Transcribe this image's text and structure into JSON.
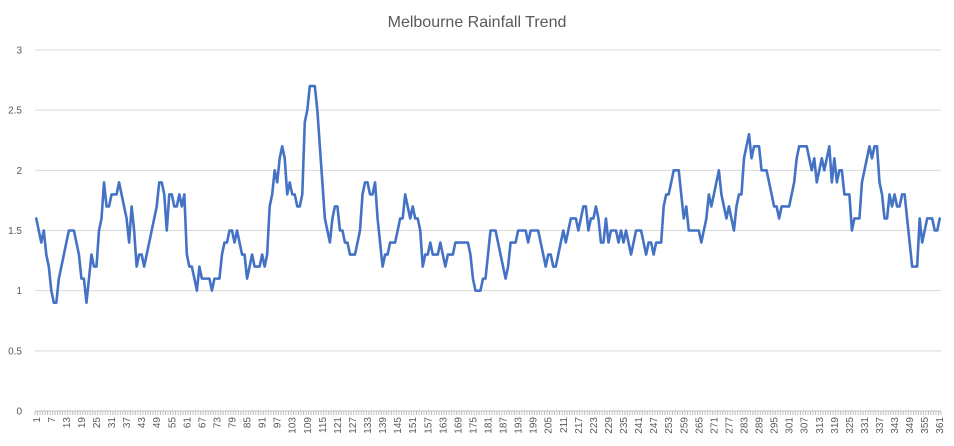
{
  "chart_data": {
    "type": "line",
    "title": "Melbourne Rainfall Trend",
    "xlabel": "",
    "ylabel": "",
    "ylim": [
      0,
      3
    ],
    "yticks": [
      "0",
      "0.5",
      "1",
      "1.5",
      "2",
      "2.5",
      "3"
    ],
    "grid": true,
    "legend": "none",
    "line_color": "#4472c4",
    "x_tick_step": 6,
    "series": [
      {
        "values": [
          1.6,
          1.5,
          1.4,
          1.5,
          1.3,
          1.2,
          1.0,
          0.9,
          0.9,
          1.1,
          1.2,
          1.3,
          1.4,
          1.5,
          1.5,
          1.5,
          1.4,
          1.3,
          1.1,
          1.1,
          0.9,
          1.1,
          1.3,
          1.2,
          1.2,
          1.5,
          1.6,
          1.9,
          1.7,
          1.7,
          1.8,
          1.8,
          1.8,
          1.9,
          1.8,
          1.7,
          1.6,
          1.4,
          1.7,
          1.5,
          1.2,
          1.3,
          1.3,
          1.2,
          1.3,
          1.4,
          1.5,
          1.6,
          1.7,
          1.9,
          1.9,
          1.8,
          1.5,
          1.8,
          1.8,
          1.7,
          1.7,
          1.8,
          1.7,
          1.8,
          1.3,
          1.2,
          1.2,
          1.1,
          1.0,
          1.2,
          1.1,
          1.1,
          1.1,
          1.1,
          1.0,
          1.1,
          1.1,
          1.1,
          1.3,
          1.4,
          1.4,
          1.5,
          1.5,
          1.4,
          1.5,
          1.4,
          1.3,
          1.3,
          1.1,
          1.2,
          1.3,
          1.2,
          1.2,
          1.2,
          1.3,
          1.2,
          1.3,
          1.7,
          1.8,
          2.0,
          1.9,
          2.1,
          2.2,
          2.1,
          1.8,
          1.9,
          1.8,
          1.8,
          1.7,
          1.7,
          1.8,
          2.4,
          2.5,
          2.7,
          2.7,
          2.7,
          2.5,
          2.2,
          1.9,
          1.6,
          1.5,
          1.4,
          1.6,
          1.7,
          1.7,
          1.5,
          1.5,
          1.4,
          1.4,
          1.3,
          1.3,
          1.3,
          1.4,
          1.5,
          1.8,
          1.9,
          1.9,
          1.8,
          1.8,
          1.9,
          1.6,
          1.4,
          1.2,
          1.3,
          1.3,
          1.4,
          1.4,
          1.4,
          1.5,
          1.6,
          1.6,
          1.8,
          1.7,
          1.6,
          1.7,
          1.6,
          1.6,
          1.5,
          1.2,
          1.3,
          1.3,
          1.4,
          1.3,
          1.3,
          1.3,
          1.4,
          1.3,
          1.2,
          1.3,
          1.3,
          1.3,
          1.4,
          1.4,
          1.4,
          1.4,
          1.4,
          1.4,
          1.3,
          1.1,
          1.0,
          1.0,
          1.0,
          1.1,
          1.1,
          1.3,
          1.5,
          1.5,
          1.5,
          1.4,
          1.3,
          1.2,
          1.1,
          1.2,
          1.4,
          1.4,
          1.4,
          1.5,
          1.5,
          1.5,
          1.5,
          1.4,
          1.5,
          1.5,
          1.5,
          1.5,
          1.4,
          1.3,
          1.2,
          1.3,
          1.3,
          1.2,
          1.2,
          1.3,
          1.4,
          1.5,
          1.4,
          1.5,
          1.6,
          1.6,
          1.6,
          1.5,
          1.6,
          1.7,
          1.7,
          1.5,
          1.6,
          1.6,
          1.7,
          1.6,
          1.4,
          1.4,
          1.6,
          1.4,
          1.5,
          1.5,
          1.5,
          1.4,
          1.5,
          1.4,
          1.5,
          1.4,
          1.3,
          1.4,
          1.5,
          1.5,
          1.5,
          1.4,
          1.3,
          1.4,
          1.4,
          1.3,
          1.4,
          1.4,
          1.4,
          1.7,
          1.8,
          1.8,
          1.9,
          2.0,
          2.0,
          2.0,
          1.8,
          1.6,
          1.7,
          1.5,
          1.5,
          1.5,
          1.5,
          1.5,
          1.4,
          1.5,
          1.6,
          1.8,
          1.7,
          1.8,
          1.9,
          2.0,
          1.8,
          1.7,
          1.6,
          1.7,
          1.6,
          1.5,
          1.7,
          1.8,
          1.8,
          2.1,
          2.2,
          2.3,
          2.1,
          2.2,
          2.2,
          2.2,
          2.0,
          2.0,
          2.0,
          1.9,
          1.8,
          1.7,
          1.7,
          1.6,
          1.7,
          1.7,
          1.7,
          1.7,
          1.8,
          1.9,
          2.1,
          2.2,
          2.2,
          2.2,
          2.2,
          2.1,
          2.0,
          2.1,
          1.9,
          2.0,
          2.1,
          2.0,
          2.1,
          2.2,
          1.9,
          2.1,
          1.9,
          2.0,
          2.0,
          1.8,
          1.8,
          1.8,
          1.5,
          1.6,
          1.6,
          1.6,
          1.9,
          2.0,
          2.1,
          2.2,
          2.1,
          2.2,
          2.2,
          1.9,
          1.8,
          1.6,
          1.6,
          1.8,
          1.7,
          1.8,
          1.7,
          1.7,
          1.8,
          1.8,
          1.6,
          1.4,
          1.2,
          1.2,
          1.2,
          1.6,
          1.4,
          1.5,
          1.6,
          1.6,
          1.6,
          1.5,
          1.5,
          1.6
        ]
      }
    ]
  }
}
